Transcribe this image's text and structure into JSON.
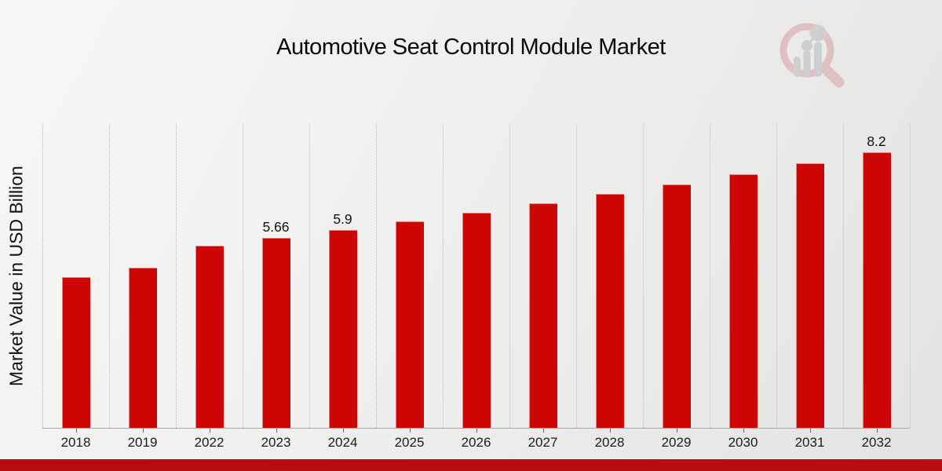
{
  "header": {
    "title": "Automotive Seat Control Module Market"
  },
  "watermark": {
    "name": "market-research-future-logo",
    "rim_color": "#d9a0a3",
    "bars_color": "#b9b9bc"
  },
  "chart_data": {
    "type": "bar",
    "title": "Automotive Seat Control Module Market",
    "xlabel": "",
    "ylabel": "Market Value in USD Billion",
    "categories": [
      "2018",
      "2019",
      "2022",
      "2023",
      "2024",
      "2025",
      "2026",
      "2027",
      "2028",
      "2029",
      "2030",
      "2031",
      "2032"
    ],
    "values": [
      4.5,
      4.78,
      5.42,
      5.66,
      5.9,
      6.15,
      6.41,
      6.68,
      6.96,
      7.25,
      7.55,
      7.87,
      8.2
    ],
    "point_labels": [
      "",
      "",
      "",
      "5.66",
      "5.9",
      "",
      "",
      "",
      "",
      "",
      "",
      "",
      "8.2"
    ],
    "bar_color": "#cc0605",
    "ylim": [
      0,
      9.05
    ],
    "grid": "vertical-dotted",
    "legend": "none",
    "y_axis_ticks_visible": false
  },
  "footer": {
    "strip_color": "#b90c10"
  }
}
